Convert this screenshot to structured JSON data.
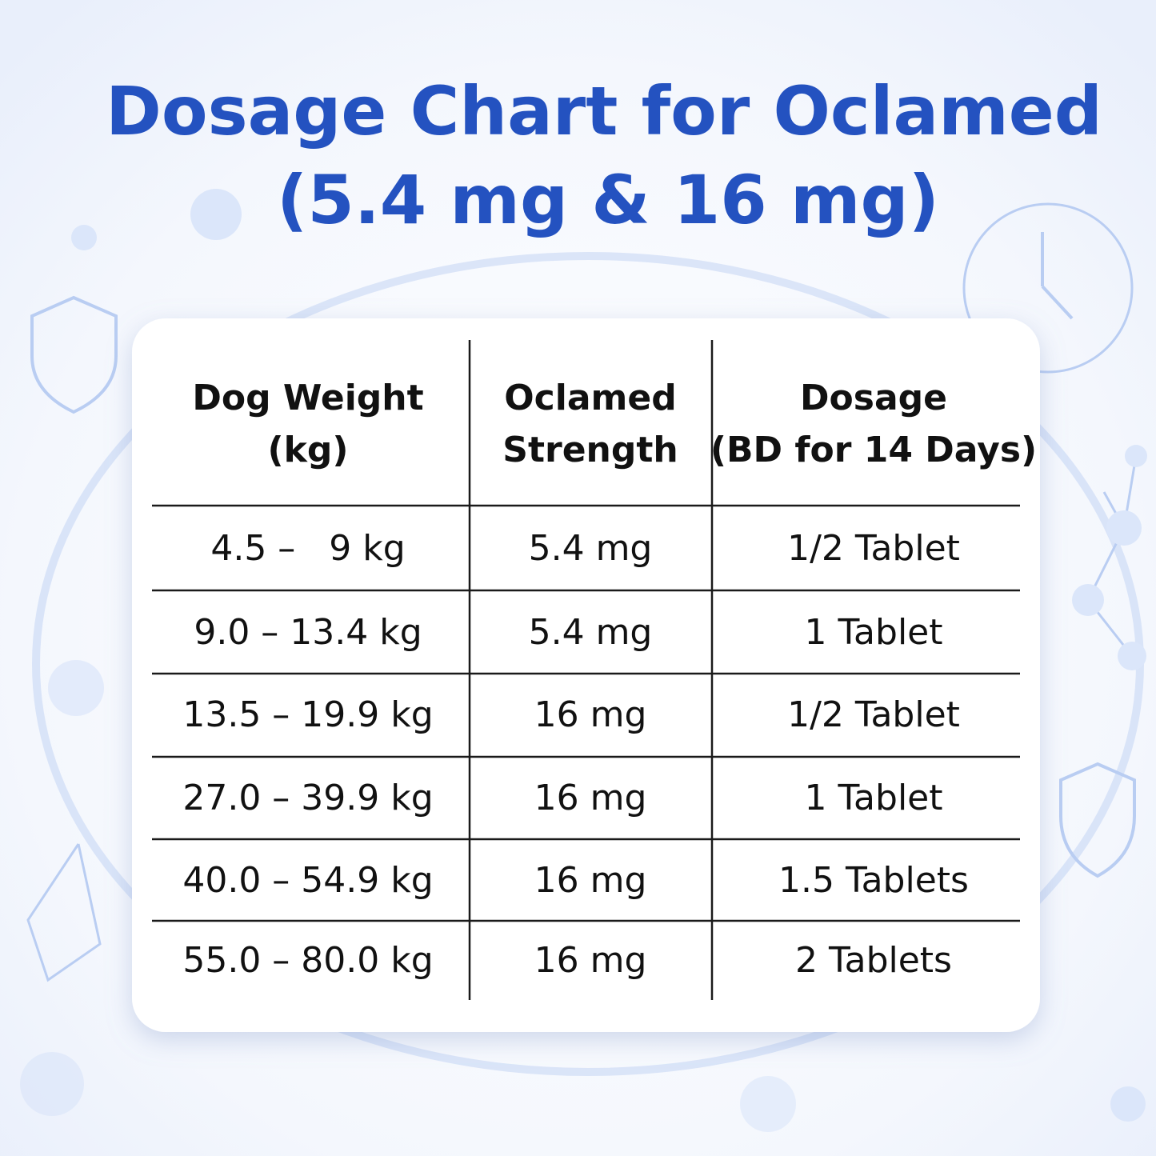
{
  "title": {
    "lines": [
      "Dosage Chart for Oclamed",
      "(5.4 mg & 16 mg)"
    ]
  },
  "table": {
    "header": [
      [
        "Dog Weight",
        "(kg)"
      ],
      [
        "Oclamed",
        "Strength"
      ],
      [
        "Dosage",
        "(BD for 14 Days)"
      ]
    ],
    "rows": [
      [
        "4.5 –   9 kg",
        "5.4 mg",
        "1/2 Tablet"
      ],
      [
        "9.0 – 13.4 kg",
        "5.4 mg",
        "1 Tablet"
      ],
      [
        "13.5 – 19.9 kg",
        "16 mg",
        "1/2 Tablet"
      ],
      [
        "27.0 – 39.9 kg",
        "16 mg",
        "1 Tablet"
      ],
      [
        "40.0 – 54.9 kg",
        "16 mg",
        "1.5 Tablets"
      ],
      [
        "55.0 – 80.0 kg",
        "16 mg",
        "2 Tablets"
      ]
    ]
  }
}
